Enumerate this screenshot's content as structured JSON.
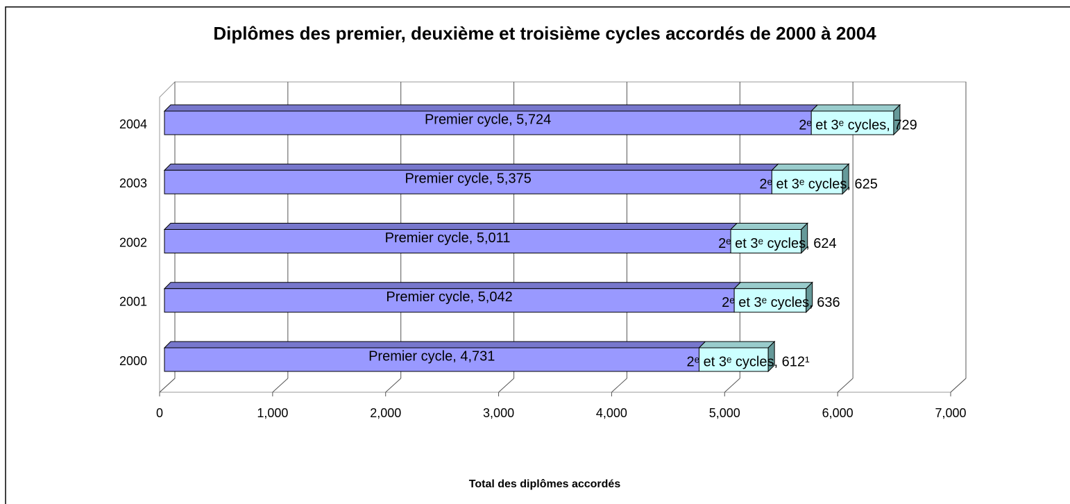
{
  "chart_data": {
    "type": "bar3d_stacked_horizontal",
    "title": "Diplômes des premier, deuxième et troisième cycles accordés de 2000 à 2004",
    "x_label": "Total des diplômes accordés",
    "categories": [
      "2000",
      "2001",
      "2002",
      "2003",
      "2004"
    ],
    "series": [
      {
        "name": "Premier cycle",
        "color": "#9999ff",
        "values": [
          4731,
          5042,
          5011,
          5375,
          5724
        ],
        "value_labels": [
          "Premier cycle, 4,731",
          "Premier cycle, 5,042",
          "Premier cycle, 5,011",
          "Premier cycle, 5,375",
          "Premier cycle, 5,724"
        ]
      },
      {
        "name": "2ᵉ et 3ᵉ cycles",
        "color": "#ccffff",
        "values": [
          612,
          636,
          624,
          625,
          729
        ],
        "value_labels": [
          "2ᵉ et 3ᵉ cycles, 612¹",
          "2ᵉ et 3ᵉ cycles, 636",
          "2ᵉ et 3ᵉ cycles, 624",
          "2ᵉ et 3ᵉ cycles, 625",
          "2ᵉ et 3ᵉ cycles, 729"
        ]
      }
    ],
    "xlim": [
      0,
      7000
    ],
    "xticks": [
      0,
      {
        "value": 1000,
        "label": "1,000"
      },
      {
        "value": 2000,
        "label": "2,000"
      },
      {
        "value": 3000,
        "label": "3,000"
      },
      {
        "value": 4000,
        "label": "4,000"
      },
      {
        "value": 5000,
        "label": "5,000"
      },
      {
        "value": 6000,
        "label": "6,000"
      },
      {
        "value": 7000,
        "label": "7,000"
      }
    ],
    "grid": true
  }
}
